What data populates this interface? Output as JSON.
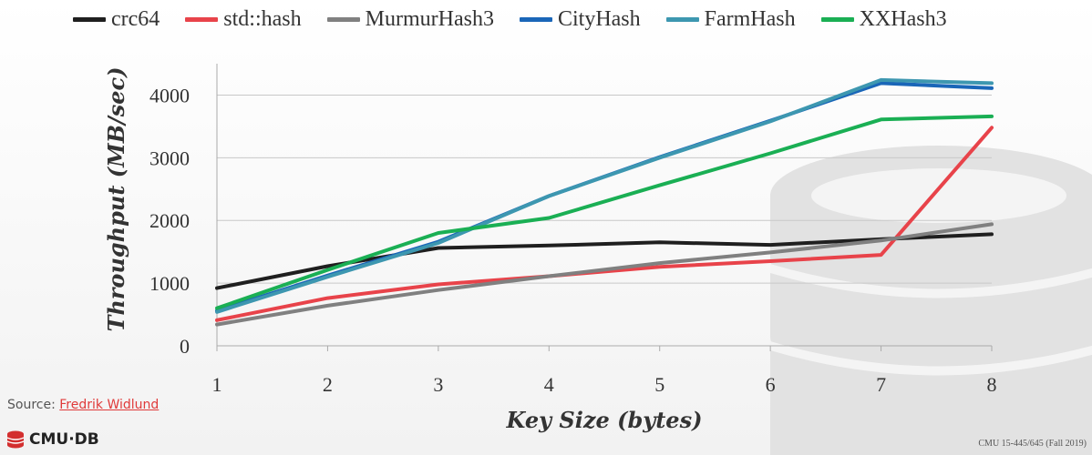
{
  "chart_data": {
    "type": "line",
    "x": [
      1,
      2,
      3,
      4,
      5,
      6,
      7,
      8
    ],
    "xlabel": "Key Size (bytes)",
    "ylabel": "Throughput (MB/sec)",
    "xlim": [
      1,
      8
    ],
    "ylim": [
      0,
      4500
    ],
    "yticks": [
      0,
      1000,
      2000,
      3000,
      4000
    ],
    "grid": "horizontal",
    "legend": "top",
    "series": [
      {
        "name": "crc64",
        "color": "#1f1f1f",
        "values": [
          920,
          1270,
          1560,
          1600,
          1650,
          1610,
          1700,
          1780
        ]
      },
      {
        "name": "std::hash",
        "color": "#e8434a",
        "values": [
          410,
          760,
          980,
          1110,
          1260,
          1350,
          1450,
          3480
        ]
      },
      {
        "name": "MurmurHash3",
        "color": "#808080",
        "values": [
          340,
          640,
          890,
          1110,
          1320,
          1490,
          1680,
          1940
        ]
      },
      {
        "name": "CityHash",
        "color": "#1a66b8",
        "values": [
          560,
          1120,
          1660,
          2390,
          3010,
          3590,
          4190,
          4110
        ]
      },
      {
        "name": "FarmHash",
        "color": "#3d97b0",
        "values": [
          540,
          1100,
          1640,
          2390,
          3000,
          3580,
          4240,
          4190
        ]
      },
      {
        "name": "XXHash3",
        "color": "#1aaf54",
        "values": [
          600,
          1210,
          1800,
          2040,
          2560,
          3070,
          3610,
          3660
        ]
      }
    ]
  },
  "source": {
    "label": "Source:",
    "link": "Fredrik Widlund"
  },
  "logo": {
    "text": "CMU·DB"
  },
  "footer": {
    "text": "CMU 15-445/645 (Fall 2019)"
  }
}
